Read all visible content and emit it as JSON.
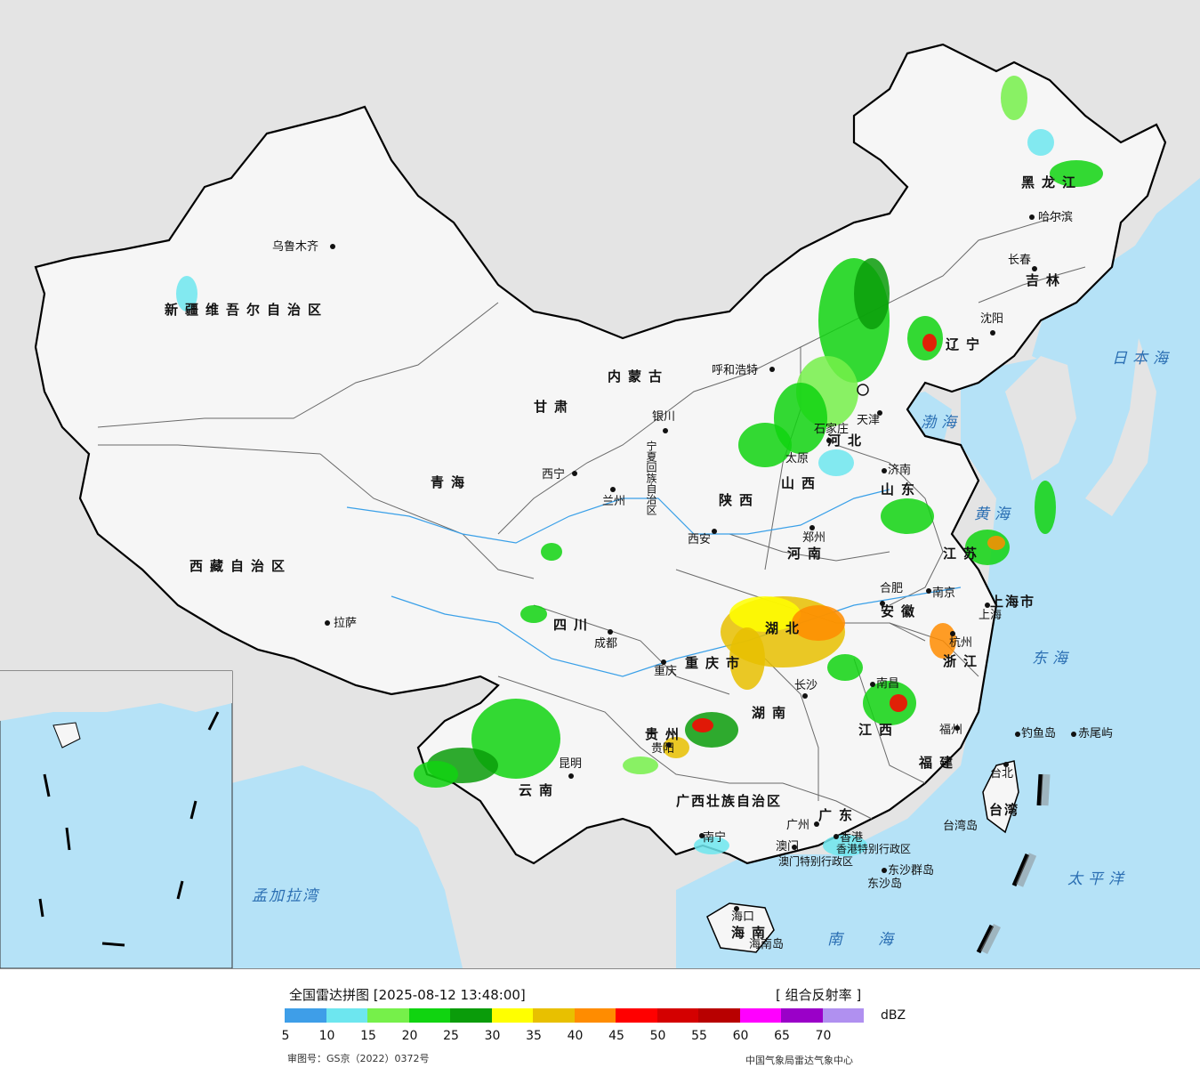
{
  "legend": {
    "title": "全国雷达拼图 [2025-08-12 13:48:00]",
    "product": "[ 组合反射率 ]",
    "unit": "dBZ",
    "ticks": [
      "5",
      "10",
      "15",
      "20",
      "25",
      "30",
      "35",
      "40",
      "45",
      "50",
      "55",
      "60",
      "65",
      "70"
    ],
    "colors": [
      "#3e9ee8",
      "#6de6ef",
      "#76f04a",
      "#10d410",
      "#0a9c0a",
      "#ffff00",
      "#e8c000",
      "#ff8c00",
      "#ff0000",
      "#d40000",
      "#b80000",
      "#ff00ff",
      "#9a00c8",
      "#b090f0"
    ],
    "approval": "审图号：GS京（2022）0372号",
    "credit": "中国气象局雷达气象中心"
  },
  "cities": [
    {
      "name": "乌鲁木齐"
    },
    {
      "name": "哈尔滨"
    },
    {
      "name": "长春"
    },
    {
      "name": "沈阳"
    },
    {
      "name": "呼和浩特"
    },
    {
      "name": "银川"
    },
    {
      "name": "天津"
    },
    {
      "name": "石家庄"
    },
    {
      "name": "济南"
    },
    {
      "name": "西宁"
    },
    {
      "name": "兰州"
    },
    {
      "name": "西安"
    },
    {
      "name": "郑州"
    },
    {
      "name": "合肥"
    },
    {
      "name": "南京"
    },
    {
      "name": "上海"
    },
    {
      "name": "杭州"
    },
    {
      "name": "拉萨"
    },
    {
      "name": "成都"
    },
    {
      "name": "重庆"
    },
    {
      "name": "长沙"
    },
    {
      "name": "南昌"
    },
    {
      "name": "福州"
    },
    {
      "name": "贵阳"
    },
    {
      "name": "昆明"
    },
    {
      "name": "南宁"
    },
    {
      "name": "广州"
    },
    {
      "name": "香港"
    },
    {
      "name": "澳门"
    },
    {
      "name": "海口"
    },
    {
      "name": "台北"
    },
    {
      "name": "钓鱼岛"
    },
    {
      "name": "赤尾屿"
    },
    {
      "name": "东沙群岛"
    },
    {
      "name": "东沙岛"
    },
    {
      "name": "海南岛"
    },
    {
      "name": "台湾岛"
    },
    {
      "name": "太原"
    }
  ],
  "provinces": [
    {
      "name": "新疆维吾尔自治区"
    },
    {
      "name": "西藏自治区"
    },
    {
      "name": "青海"
    },
    {
      "name": "甘肃"
    },
    {
      "name": "内蒙古"
    },
    {
      "name": "黑龙江"
    },
    {
      "name": "吉林"
    },
    {
      "name": "辽宁"
    },
    {
      "name": "河北"
    },
    {
      "name": "山西"
    },
    {
      "name": "陕西"
    },
    {
      "name": "河南"
    },
    {
      "name": "山东"
    },
    {
      "name": "江苏"
    },
    {
      "name": "安徽"
    },
    {
      "name": "湖北"
    },
    {
      "name": "四川"
    },
    {
      "name": "重庆市"
    },
    {
      "name": "湖南"
    },
    {
      "name": "江西"
    },
    {
      "name": "浙江"
    },
    {
      "name": "福建"
    },
    {
      "name": "贵州"
    },
    {
      "name": "云南"
    },
    {
      "name": "广西壮族自治区"
    },
    {
      "name": "广东"
    },
    {
      "name": "海南"
    },
    {
      "name": "台湾"
    },
    {
      "name": "上海市"
    },
    {
      "name": "宁夏回族自治区"
    },
    {
      "name": "香港特别行政区"
    },
    {
      "name": "澳门特别行政区"
    }
  ],
  "seas": [
    {
      "name": "日本海"
    },
    {
      "name": "渤海"
    },
    {
      "name": "黄海"
    },
    {
      "name": "东海"
    },
    {
      "name": "南海"
    },
    {
      "name": "太平洋"
    },
    {
      "name": "孟加拉湾"
    }
  ]
}
